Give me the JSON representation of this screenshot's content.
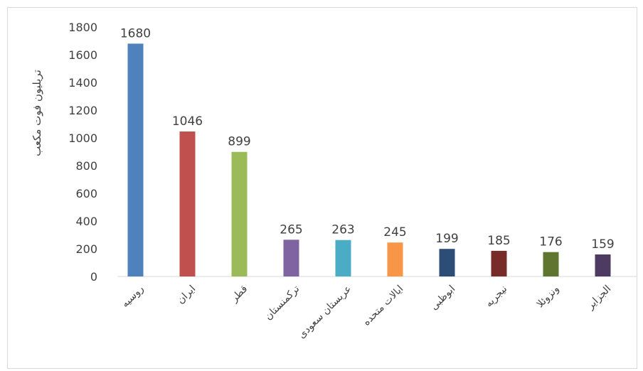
{
  "chart_data": {
    "type": "bar",
    "title": "",
    "xlabel": "",
    "ylabel": "تریلیون فوت مکعب",
    "categories": [
      "روسیه",
      "ایران",
      "قطر",
      "ترکمنستان",
      "عربستان سعودی",
      "ایالات متحده",
      "ابوظبی",
      "نیجریه",
      "ونزوئلا",
      "الجزایر"
    ],
    "values": [
      1680,
      1046,
      899,
      265,
      263,
      245,
      199,
      185,
      176,
      159
    ],
    "colors": [
      "#4f81bd",
      "#c0504d",
      "#9bbb59",
      "#8064a2",
      "#4bacc6",
      "#f79646",
      "#2c4d75",
      "#772c2a",
      "#5f7530",
      "#4d3b62"
    ],
    "ylim": [
      0,
      1800
    ],
    "yticks": [
      0,
      200,
      400,
      600,
      800,
      1000,
      1200,
      1400,
      1600,
      1800
    ],
    "grid": false,
    "legend": "none"
  }
}
